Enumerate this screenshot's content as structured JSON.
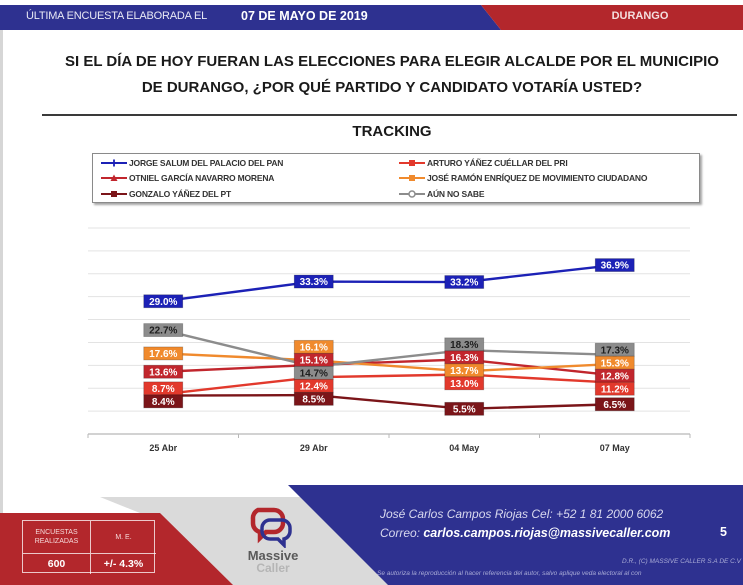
{
  "header": {
    "prefix": "ÚLTIMA ENCUESTA ELABORADA EL",
    "date": "07 DE MAYO DE 2019",
    "region": "DURANGO",
    "colors": {
      "blue": "#2e3190",
      "red": "#b3272c"
    }
  },
  "question": {
    "line1": "SI EL DÍA DE HOY FUERAN LAS ELECCIONES PARA ELEGIR ALCALDE POR EL MUNICIPIO",
    "line2": "DE DURANGO, ¿POR QUÉ PARTIDO Y CANDIDATO VOTARÍA USTED?"
  },
  "chart_data": {
    "type": "line",
    "title": "TRACKING",
    "xlabel": "",
    "ylabel": "",
    "categories": [
      "25 Abr",
      "29 Abr",
      "04 May",
      "07 May"
    ],
    "ylim": [
      0,
      45
    ],
    "gridlines": [
      5,
      10,
      15,
      20,
      25,
      30,
      35,
      40,
      45
    ],
    "grid": true,
    "y_tick_labels_visible": false,
    "legend": "top",
    "series": [
      {
        "name": "JORGE SALUM DEL PALACIO  DEL PAN",
        "color": "#1c21b6",
        "marker": "plus",
        "label_text": "#ffffff",
        "values": [
          29.0,
          33.3,
          33.2,
          36.9
        ],
        "data_labels": [
          "29.0%",
          "33.3%",
          "33.2%",
          "36.9%"
        ]
      },
      {
        "name": "ARTURO YÁÑEZ CUÉLLAR DEL PRI",
        "color": "#e2392c",
        "marker": "square",
        "label_text": "#ffffff",
        "values": [
          8.7,
          12.4,
          13.0,
          11.2
        ],
        "data_labels": [
          "8.7%",
          "12.4%",
          "13.0%",
          "11.2%"
        ]
      },
      {
        "name": "OTNIEL GARCÍA NAVARRO MORENA",
        "color": "#c1262d",
        "marker": "triangle",
        "label_text": "#ffffff",
        "values": [
          13.6,
          15.1,
          16.3,
          12.8
        ],
        "data_labels": [
          "13.6%",
          "15.1%",
          "16.3%",
          "12.8%"
        ]
      },
      {
        "name": "JOSÉ RAMÓN ENRÍQUEZ DE MOVIMIENTO CIUDADANO",
        "color": "#f08a2d",
        "marker": "square",
        "label_text": "#ffffff",
        "values": [
          17.6,
          16.1,
          13.7,
          15.3
        ],
        "data_labels": [
          "17.6%",
          "16.1%",
          "13.7%",
          "15.3%"
        ]
      },
      {
        "name": "GONZALO YÁÑEZ DEL PT",
        "color": "#7b1519",
        "marker": "square",
        "label_text": "#ffffff",
        "values": [
          8.4,
          8.5,
          5.5,
          6.5
        ],
        "data_labels": [
          "8.4%",
          "8.5%",
          "5.5%",
          "6.5%"
        ]
      },
      {
        "name": "AÚN NO SABE",
        "color": "#8c8c8c",
        "marker": "circle",
        "label_text": "#1e1e1e",
        "values": [
          22.7,
          14.7,
          18.3,
          17.3
        ],
        "data_labels": [
          "22.7%",
          "14.7%",
          "18.3%",
          "17.3%"
        ]
      }
    ]
  },
  "footer": {
    "stats": {
      "header_surveys": "ENCUESTAS REALIZADAS",
      "header_margin": "M. E.",
      "surveys": "600",
      "margin": "+/- 4.3%"
    },
    "logo": {
      "word1": "Massive",
      "word2": "Caller"
    },
    "contact_line": "José Carlos Campos Riojas Cel: +52 1 81 2000 6062",
    "email_label": "Correo: ",
    "email": "carlos.campos.riojas@massivecaller.com",
    "page_number": "5",
    "copyright": "D.R., (C) MASSIVE CALLER S.A DE C.V",
    "disclaimer": "Se autoriza la reproducción al hacer referencia del autor, salvo aplique veda electoral al con",
    "colors": {
      "blue": "#2e3190",
      "red": "#b3272c",
      "gray": "#dadada"
    }
  }
}
